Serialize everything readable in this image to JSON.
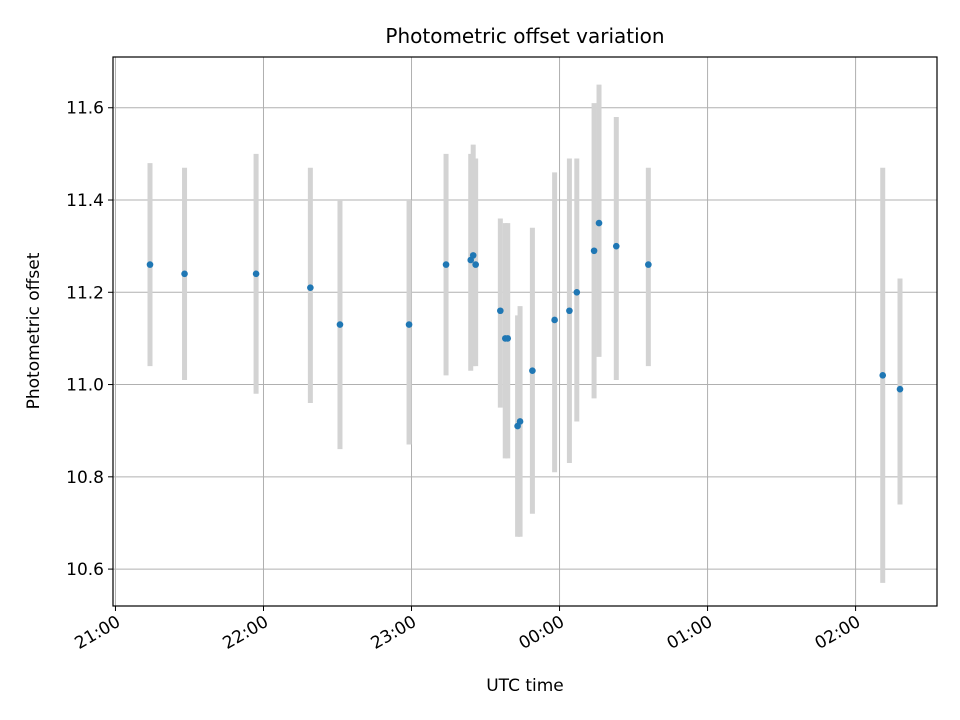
{
  "chart_data": {
    "type": "scatter",
    "title": "Photometric offset variation",
    "xlabel": "UTC time",
    "ylabel": "Photometric offset",
    "x_axis_type": "time",
    "xlim": [
      "20:59",
      "02:33"
    ],
    "ylim": [
      10.52,
      11.71
    ],
    "x_ticks": [
      "21:00",
      "22:00",
      "23:00",
      "00:00",
      "01:00",
      "02:00"
    ],
    "y_ticks": [
      "10.6",
      "10.8",
      "11.0",
      "11.2",
      "11.4",
      "11.6"
    ],
    "grid": true,
    "colors": {
      "point": "#1f77b4",
      "errorbar": "#d3d3d3",
      "grid": "#b0b0b0"
    },
    "series": [
      {
        "points": [
          {
            "x": "21:14",
            "y": 11.26,
            "y_low": 11.04,
            "y_high": 11.48
          },
          {
            "x": "21:28",
            "y": 11.24,
            "y_low": 11.01,
            "y_high": 11.47
          },
          {
            "x": "21:57",
            "y": 11.24,
            "y_low": 10.98,
            "y_high": 11.5
          },
          {
            "x": "22:19",
            "y": 11.21,
            "y_low": 10.96,
            "y_high": 11.47
          },
          {
            "x": "22:31",
            "y": 11.13,
            "y_low": 10.86,
            "y_high": 11.4
          },
          {
            "x": "22:59",
            "y": 11.13,
            "y_low": 10.87,
            "y_high": 11.4
          },
          {
            "x": "23:14",
            "y": 11.26,
            "y_low": 11.02,
            "y_high": 11.5
          },
          {
            "x": "23:24",
            "y": 11.27,
            "y_low": 11.03,
            "y_high": 11.5
          },
          {
            "x": "23:25",
            "y": 11.28,
            "y_low": 11.04,
            "y_high": 11.52
          },
          {
            "x": "23:26",
            "y": 11.26,
            "y_low": 11.04,
            "y_high": 11.49
          },
          {
            "x": "23:36",
            "y": 11.16,
            "y_low": 10.95,
            "y_high": 11.36
          },
          {
            "x": "23:38",
            "y": 11.1,
            "y_low": 10.84,
            "y_high": 11.35
          },
          {
            "x": "23:39",
            "y": 11.1,
            "y_low": 10.84,
            "y_high": 11.35
          },
          {
            "x": "23:43",
            "y": 10.91,
            "y_low": 10.67,
            "y_high": 11.15
          },
          {
            "x": "23:44",
            "y": 10.92,
            "y_low": 10.67,
            "y_high": 11.17
          },
          {
            "x": "23:49",
            "y": 11.03,
            "y_low": 10.72,
            "y_high": 11.34
          },
          {
            "x": "23:58",
            "y": 11.14,
            "y_low": 10.81,
            "y_high": 11.46
          },
          {
            "x": "00:04",
            "y": 11.16,
            "y_low": 10.83,
            "y_high": 11.49
          },
          {
            "x": "00:07",
            "y": 11.2,
            "y_low": 10.92,
            "y_high": 11.49
          },
          {
            "x": "00:14",
            "y": 11.29,
            "y_low": 10.97,
            "y_high": 11.61
          },
          {
            "x": "00:16",
            "y": 11.35,
            "y_low": 11.06,
            "y_high": 11.65
          },
          {
            "x": "00:23",
            "y": 11.3,
            "y_low": 11.01,
            "y_high": 11.58
          },
          {
            "x": "00:36",
            "y": 11.26,
            "y_low": 11.04,
            "y_high": 11.47
          },
          {
            "x": "02:11",
            "y": 11.02,
            "y_low": 10.57,
            "y_high": 11.47
          },
          {
            "x": "02:18",
            "y": 10.99,
            "y_low": 10.74,
            "y_high": 11.23
          }
        ]
      }
    ]
  }
}
